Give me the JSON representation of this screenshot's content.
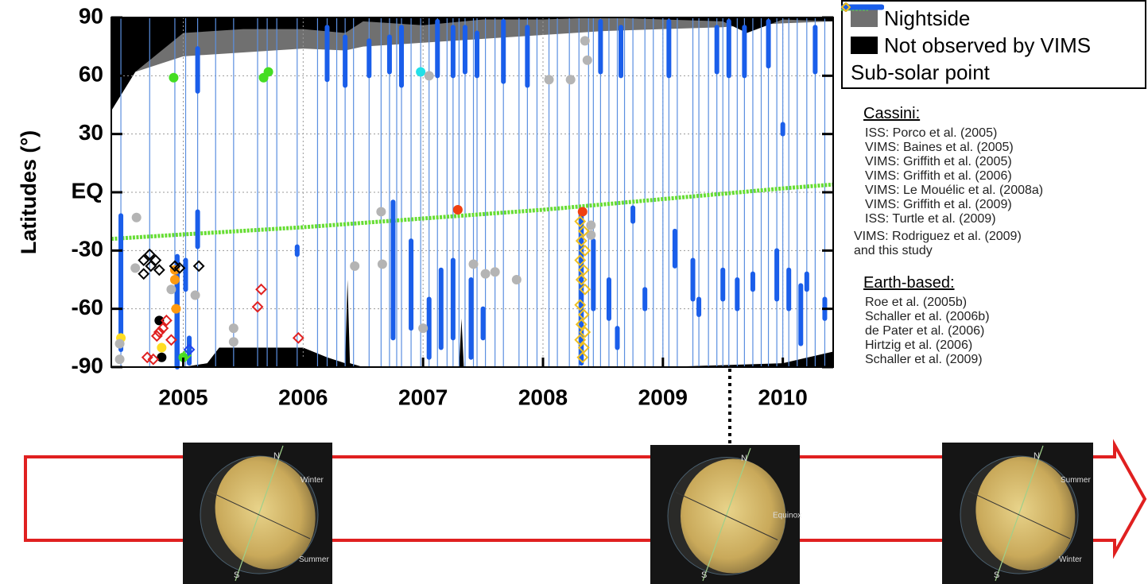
{
  "chart_data": {
    "type": "scatter",
    "ylabel": "Latitudes (°)",
    "xlim": [
      2004.4,
      2010.42
    ],
    "xticks": [
      2005,
      2006,
      2007,
      2008,
      2009,
      2010
    ],
    "ylim": [
      -90,
      90
    ],
    "yticks": [
      90,
      60,
      30,
      {
        "value": 0,
        "label": "EQ"
      },
      -30,
      -60,
      -90
    ],
    "grid": true,
    "areas": [
      {
        "name": "Nightside",
        "color": "#707070",
        "side": "north",
        "x": [
          2004.4,
          2004.6,
          2005,
          2005.5,
          2006,
          2006.35,
          2006.5,
          2007,
          2007.5,
          2008,
          2008.5,
          2009,
          2009.5,
          2009.7,
          2010,
          2010.42
        ],
        "values": [
          42,
          62,
          70,
          72,
          74,
          73,
          75,
          77,
          79,
          81,
          83,
          84,
          85,
          86,
          87,
          88
        ]
      },
      {
        "name": "Not observed by VIMS",
        "color": "#000000",
        "side": "north",
        "x": [
          2004.4,
          2004.6,
          2005,
          2005.5,
          2006,
          2006.35,
          2006.5,
          2007,
          2007.5,
          2008,
          2008.5,
          2009,
          2009.5,
          2009.7,
          2010,
          2010.42
        ],
        "values": [
          42,
          62,
          82,
          84,
          84,
          82,
          88,
          86,
          89,
          89,
          90,
          89,
          88,
          82,
          89,
          88
        ],
        "x_south": [
          2004.4,
          2005,
          2005.2,
          2005.3,
          2006,
          2006.2,
          2006.35,
          2006.37,
          2006.39,
          2006.5,
          2007.3,
          2007.32,
          2007.34,
          2008,
          2009,
          2010,
          2010.42
        ],
        "values_south": [
          -90,
          -90,
          -88,
          -80,
          -80,
          -85,
          -88,
          -45,
          -88,
          -90,
          -90,
          -65,
          -90,
          -90,
          -90,
          -88,
          -82
        ]
      }
    ],
    "observations": {
      "color": "#5b8fe0",
      "x": [
        2004.48,
        2004.72,
        2004.93,
        2005.02,
        2005.12,
        2005.27,
        2005.42,
        2005.62,
        2005.7,
        2005.78,
        2005.95,
        2006.12,
        2006.2,
        2006.28,
        2006.35,
        2006.42,
        2006.55,
        2006.65,
        2006.72,
        2006.78,
        2006.82,
        2006.9,
        2006.98,
        2007.05,
        2007.12,
        2007.2,
        2007.25,
        2007.3,
        2007.35,
        2007.42,
        2007.45,
        2007.52,
        2007.6,
        2007.67,
        2007.8,
        2007.87,
        2007.95,
        2008.05,
        2008.12,
        2008.22,
        2008.3,
        2008.38,
        2008.42,
        2008.48,
        2008.55,
        2008.62,
        2008.68,
        2008.75,
        2008.85,
        2008.92,
        2009.0,
        2009.05,
        2009.12,
        2009.25,
        2009.3,
        2009.38,
        2009.45,
        2009.5,
        2009.55,
        2009.62,
        2009.68,
        2009.75,
        2009.82,
        2009.88,
        2009.95,
        2010.0,
        2010.05,
        2010.12,
        2010.2,
        2010.27,
        2010.35
      ]
    },
    "legend_groups": [
      "Cassini:",
      "Earth-based:"
    ],
    "series": [
      {
        "name": "Sub-solar point",
        "kind": "line",
        "color": "#66dd33",
        "x": [
          2004.4,
          2005,
          2006,
          2007,
          2008,
          2009,
          2010,
          2010.42
        ],
        "values": [
          -24,
          -21.7,
          -18,
          -13.5,
          -9,
          -3.5,
          2,
          4
        ]
      },
      {
        "name": "ISS: Porco et al. (2005)",
        "kind": "circle",
        "group": 0,
        "color": "#000000",
        "x": [
          2004.82,
          2004.8
        ],
        "values": [
          -85,
          -66
        ]
      },
      {
        "name": "VIMS: Baines et al. (2005)",
        "kind": "circle",
        "group": 0,
        "color": "#ffdd22",
        "x": [
          2004.48,
          2004.82
        ],
        "values": [
          -75,
          -80
        ]
      },
      {
        "name": "VIMS: Griffith et al. (2005)",
        "kind": "circle",
        "group": 0,
        "color": "#ff9a10",
        "x": [
          2004.93,
          2004.93,
          2004.94
        ],
        "values": [
          -45,
          -40,
          -60
        ]
      },
      {
        "name": "VIMS: Griffith et al. (2006)",
        "kind": "circle",
        "group": 0,
        "color": "#44dd22",
        "x": [
          2004.92,
          2005.67,
          2005.71,
          2005.0
        ],
        "values": [
          59,
          59,
          62,
          -85
        ]
      },
      {
        "name": "VIMS: Le Mouélic et al. (2008a)",
        "kind": "circle",
        "group": 0,
        "color": "#22e0e8",
        "x": [
          2006.98
        ],
        "values": [
          62
        ]
      },
      {
        "name": "VIMS: Griffith et al. (2009)",
        "kind": "circle",
        "group": 0,
        "color": "#f04010",
        "x": [
          2007.29,
          2008.33
        ],
        "values": [
          -9,
          -10
        ]
      },
      {
        "name": "ISS: Turtle et al. (2009)",
        "kind": "circle",
        "group": 0,
        "color": "#b4b4b4",
        "x": [
          2004.47,
          2004.47,
          2004.6,
          2004.61,
          2004.9,
          2005.1,
          2005.42,
          2005.42,
          2006.43,
          2006.65,
          2006.66,
          2007.0,
          2007.05,
          2007.42,
          2007.52,
          2007.6,
          2007.78,
          2008.05,
          2008.23,
          2008.35,
          2008.37,
          2008.4,
          2008.4
        ],
        "values": [
          -78,
          -86,
          -39,
          -13,
          -50,
          -53,
          -70,
          -77,
          -38,
          -10,
          -37,
          -70,
          60,
          -37,
          -42,
          -41,
          -45,
          58,
          58,
          78,
          68,
          -17,
          -22
        ]
      },
      {
        "name": "VIMS: Rodriguez et al. (2009) and this study",
        "kind": "bar",
        "group": 0,
        "color": "#1a5eea",
        "x": [
          2004.48,
          2004.95,
          2005.02,
          2005.05,
          2005.12,
          2005.12,
          2005.95,
          2006.2,
          2006.35,
          2006.55,
          2006.72,
          2006.75,
          2006.82,
          2006.9,
          2007.05,
          2007.12,
          2007.15,
          2007.25,
          2007.25,
          2007.35,
          2007.4,
          2007.45,
          2007.5,
          2007.67,
          2007.87,
          2008.32,
          2008.42,
          2008.48,
          2008.55,
          2008.62,
          2008.65,
          2008.75,
          2008.85,
          2009.05,
          2009.1,
          2009.25,
          2009.3,
          2009.45,
          2009.5,
          2009.55,
          2009.62,
          2009.68,
          2009.75,
          2009.88,
          2009.95,
          2010.0,
          2010.05,
          2010.15,
          2010.2,
          2010.27,
          2010.35
        ],
        "values": [
          -12,
          -33,
          -35,
          -75,
          74,
          -10,
          -28,
          85,
          80,
          78,
          80,
          -5,
          85,
          -25,
          -55,
          88,
          -40,
          85,
          -35,
          85,
          -45,
          82,
          -60,
          88,
          85,
          -12,
          -25,
          88,
          -45,
          -70,
          85,
          -8,
          -50,
          88,
          -20,
          -35,
          -55,
          85,
          -40,
          88,
          -45,
          85,
          -42,
          88,
          -30,
          35,
          -40,
          -48,
          -42,
          85,
          -55
        ],
        "lows": [
          -81,
          -90,
          -50,
          -88,
          52,
          -28,
          -32,
          58,
          55,
          60,
          62,
          -75,
          55,
          -70,
          -85,
          60,
          -80,
          60,
          -75,
          62,
          -85,
          60,
          -75,
          57,
          55,
          -88,
          -60,
          62,
          -65,
          -80,
          60,
          -15,
          -60,
          60,
          -38,
          -55,
          -63,
          62,
          -55,
          60,
          -60,
          60,
          -50,
          65,
          -55,
          30,
          -60,
          -78,
          -50,
          62,
          -65
        ]
      },
      {
        "name": "Roe et al. (2005b)",
        "kind": "diamond",
        "group": 1,
        "color": "#000000",
        "x": [
          2004.67,
          2004.72,
          2004.73,
          2004.67,
          2004.77,
          2004.8,
          2004.93,
          2004.97,
          2005.13
        ],
        "values": [
          -35,
          -32,
          -38,
          -42,
          -35,
          -40,
          -38,
          -39,
          -38
        ]
      },
      {
        "name": "Schaller et al. (2006b)",
        "kind": "diamond",
        "group": 1,
        "color": "#e02020",
        "x": [
          2004.7,
          2004.75,
          2004.78,
          2004.8,
          2004.83,
          2004.86,
          2004.9,
          2005.62,
          2005.65,
          2005.96
        ],
        "values": [
          -85,
          -86,
          -74,
          -72,
          -70,
          -66,
          -76,
          -59,
          -50,
          -75
        ]
      },
      {
        "name": "de Pater et al. (2006)",
        "kind": "diamond",
        "group": 1,
        "color": "#55dd22",
        "x": [
          2005.02
        ],
        "values": [
          -84
        ]
      },
      {
        "name": "Hirtzig et al. (2006)",
        "kind": "diamond",
        "group": 1,
        "color": "#2244ee",
        "x": [
          2005.05
        ],
        "values": [
          -81
        ]
      },
      {
        "name": "Schaller et al. (2009)",
        "kind": "diamond",
        "group": 1,
        "color": "#f0c020",
        "x": [
          2008.31,
          2008.34,
          2008.32,
          2008.35,
          2008.31,
          2008.34,
          2008.32,
          2008.35,
          2008.31,
          2008.34,
          2008.32,
          2008.35,
          2008.31,
          2008.34,
          2008.33
        ],
        "values": [
          -15,
          -20,
          -25,
          -30,
          -35,
          -40,
          -45,
          -50,
          -58,
          -63,
          -68,
          -72,
          -76,
          -80,
          -85
        ]
      }
    ]
  },
  "illustration": {
    "panels": [
      {
        "north": "N",
        "south": "S",
        "upper": "Winter",
        "lower": "Summer"
      },
      {
        "north": "N",
        "south": "S",
        "middle": "Equinox"
      },
      {
        "north": "N",
        "south": "S",
        "upper": "Summer",
        "lower": "Winter"
      }
    ]
  }
}
